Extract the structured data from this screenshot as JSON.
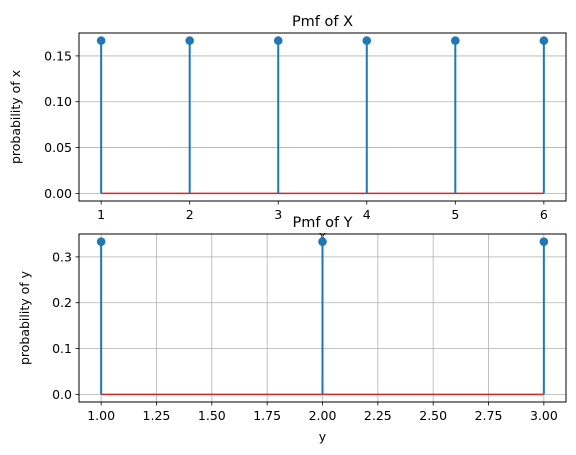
{
  "chart_data": [
    {
      "type": "stem",
      "title": "Pmf of X",
      "xlabel": "x",
      "ylabel": "probability of x",
      "x": [
        1,
        2,
        3,
        4,
        5,
        6
      ],
      "y": [
        0.1667,
        0.1667,
        0.1667,
        0.1667,
        0.1667,
        0.1667
      ],
      "xlim": [
        0.75,
        6.25
      ],
      "ylim": [
        -0.0083,
        0.175
      ],
      "xticks": [
        1,
        2,
        3,
        4,
        5,
        6
      ],
      "xtick_labels": [
        "1",
        "2",
        "3",
        "4",
        "5",
        "6"
      ],
      "yticks": [
        0.0,
        0.05,
        0.1,
        0.15
      ],
      "ytick_labels": [
        "0.00",
        "0.05",
        "0.10",
        "0.15"
      ],
      "grid": "horizontal",
      "stem_color": "#1f77b4",
      "baseline_color": "#d62728"
    },
    {
      "type": "stem",
      "title": "Pmf of Y",
      "xlabel": "y",
      "ylabel": "probability of y",
      "x": [
        1,
        2,
        3
      ],
      "y": [
        0.3333,
        0.3333,
        0.3333
      ],
      "xlim": [
        0.9,
        3.1
      ],
      "ylim": [
        -0.0167,
        0.35
      ],
      "xticks": [
        1.0,
        1.25,
        1.5,
        1.75,
        2.0,
        2.25,
        2.5,
        2.75,
        3.0
      ],
      "xtick_labels": [
        "1.00",
        "1.25",
        "1.50",
        "1.75",
        "2.00",
        "2.25",
        "2.50",
        "2.75",
        "3.00"
      ],
      "yticks": [
        0.0,
        0.1,
        0.2,
        0.3
      ],
      "ytick_labels": [
        "0.0",
        "0.1",
        "0.2",
        "0.3"
      ],
      "grid": "both",
      "stem_color": "#1f77b4",
      "baseline_color": "#d62728"
    }
  ]
}
